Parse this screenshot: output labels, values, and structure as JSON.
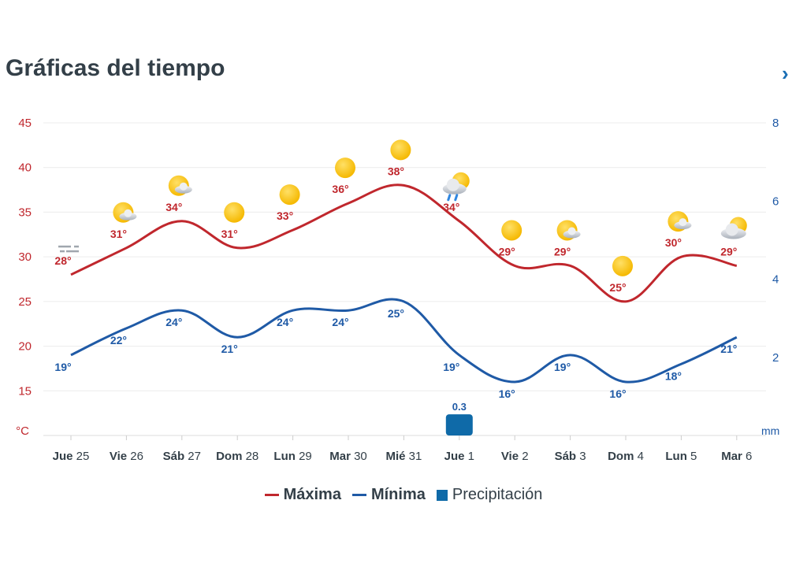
{
  "header": {
    "title": "Gráficas del tiempo",
    "next_icon": "chevron-right-icon"
  },
  "chart_data": {
    "type": "line",
    "categories": [
      {
        "day": "Jue",
        "num": "25"
      },
      {
        "day": "Vie",
        "num": "26"
      },
      {
        "day": "Sáb",
        "num": "27"
      },
      {
        "day": "Dom",
        "num": "28"
      },
      {
        "day": "Lun",
        "num": "29"
      },
      {
        "day": "Mar",
        "num": "30"
      },
      {
        "day": "Mié",
        "num": "31"
      },
      {
        "day": "Jue",
        "num": "1"
      },
      {
        "day": "Vie",
        "num": "2"
      },
      {
        "day": "Sáb",
        "num": "3"
      },
      {
        "day": "Dom",
        "num": "4"
      },
      {
        "day": "Lun",
        "num": "5"
      },
      {
        "day": "Mar",
        "num": "6"
      }
    ],
    "icons": [
      "fog",
      "sun-cloud",
      "sun-cloud",
      "sun",
      "sun",
      "sun",
      "sun",
      "rain-sun",
      "sun",
      "sun-cloud",
      "sun",
      "sun-cloud",
      "cloud-sun"
    ],
    "series": [
      {
        "name": "Máxima",
        "color": "#c0272d",
        "axis": "left",
        "values": [
          28,
          31,
          34,
          31,
          33,
          36,
          38,
          34,
          29,
          29,
          25,
          30,
          29
        ]
      },
      {
        "name": "Mínima",
        "color": "#1f5aa6",
        "axis": "left",
        "values": [
          19,
          22,
          24,
          21,
          24,
          24,
          25,
          19,
          16,
          19,
          16,
          18,
          21
        ]
      },
      {
        "name": "Precipitación",
        "color": "#0f6aa8",
        "axis": "right",
        "type": "bar",
        "values": [
          0,
          0,
          0,
          0,
          0,
          0,
          0,
          0.3,
          0,
          0,
          0,
          0,
          0
        ]
      }
    ],
    "yleft": {
      "ticks": [
        "45",
        "40",
        "35",
        "30",
        "25",
        "20",
        "15"
      ],
      "unit": "°C",
      "range": [
        10,
        45
      ],
      "color": "#c0272d"
    },
    "yright": {
      "ticks": [
        "8",
        "6",
        "4",
        "2"
      ],
      "unit": "mm",
      "range": [
        0,
        8
      ],
      "color": "#1f5aa6"
    },
    "grid": true,
    "legend": "bottom",
    "deg": "°"
  }
}
